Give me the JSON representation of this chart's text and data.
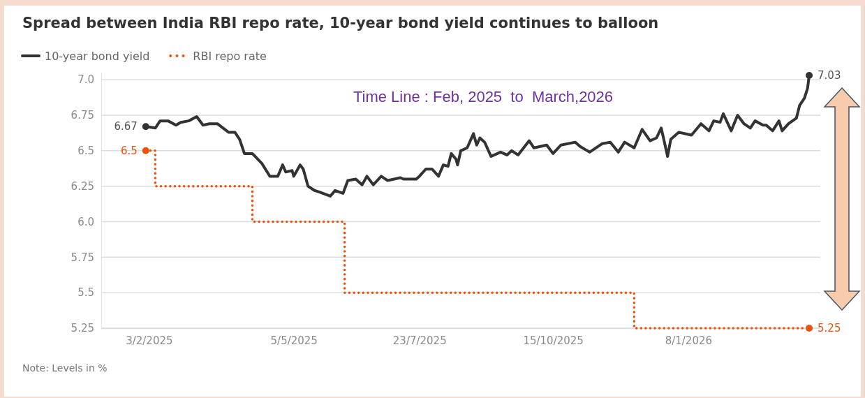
{
  "chart_data": {
    "type": "line",
    "title": "Spread between India RBI repo rate, 10-year bond yield continues to balloon",
    "legend": "top left",
    "grid": "y",
    "xlim": [
      "2025-01-04",
      "2026-04-01"
    ],
    "xticks": [
      {
        "value": "2025-02-03",
        "label": "3/2/2025"
      },
      {
        "value": "2025-05-05",
        "label": "5/5/2025"
      },
      {
        "value": "2025-07-23",
        "label": "23/7/2025"
      },
      {
        "value": "2025-10-15",
        "label": "15/10/2025"
      },
      {
        "value": "2026-01-08",
        "label": "8/1/2026"
      }
    ],
    "ylim": [
      5.25,
      7.05
    ],
    "yticks": [
      {
        "value": 7,
        "label": "7.0"
      },
      6.75,
      6.5,
      6.25,
      {
        "value": 6,
        "label": "6.0"
      },
      5.75,
      5.5,
      5.25
    ],
    "series": [
      {
        "name": "10-year bond yield",
        "line_style": "solid",
        "color": "#333333",
        "x": [
          "2025-02-01",
          "2025-02-07",
          "2025-02-10",
          "2025-02-15",
          "2025-02-20",
          "2025-02-23",
          "2025-02-28",
          "2025-03-05",
          "2025-03-09",
          "2025-03-13",
          "2025-03-18",
          "2025-03-25",
          "2025-03-29",
          "2025-04-01",
          "2025-04-04",
          "2025-04-09",
          "2025-04-15",
          "2025-04-20",
          "2025-04-25",
          "2025-04-28",
          "2025-04-30",
          "2025-05-04",
          "2025-05-05",
          "2025-05-09",
          "2025-05-11",
          "2025-05-14",
          "2025-05-18",
          "2025-05-21",
          "2025-05-28",
          "2025-05-31",
          "2025-06-05",
          "2025-06-08",
          "2025-06-13",
          "2025-06-17",
          "2025-06-20",
          "2025-06-24",
          "2025-06-29",
          "2025-07-03",
          "2025-07-11",
          "2025-07-13",
          "2025-07-21",
          "2025-07-23",
          "2025-07-27",
          "2025-07-31",
          "2025-08-04",
          "2025-08-07",
          "2025-08-10",
          "2025-08-12",
          "2025-08-15",
          "2025-08-16",
          "2025-08-18",
          "2025-08-22",
          "2025-08-26",
          "2025-08-28",
          "2025-08-30",
          "2025-09-02",
          "2025-09-06",
          "2025-09-12",
          "2025-09-16",
          "2025-09-19",
          "2025-09-23",
          "2025-09-30",
          "2025-10-03",
          "2025-10-11",
          "2025-10-15",
          "2025-10-20",
          "2025-10-29",
          "2025-11-01",
          "2025-11-07",
          "2025-11-15",
          "2025-11-20",
          "2025-11-25",
          "2025-11-29",
          "2025-12-05",
          "2025-12-10",
          "2025-12-15",
          "2025-12-19",
          "2025-12-22",
          "2025-12-26",
          "2025-12-28",
          "2026-01-02",
          "2026-01-06",
          "2026-01-10",
          "2026-01-16",
          "2026-01-21",
          "2026-01-24",
          "2026-01-28",
          "2026-01-30",
          "2026-02-04",
          "2026-02-08",
          "2026-02-12",
          "2026-02-16",
          "2026-02-19",
          "2026-02-24",
          "2026-02-26",
          "2026-03-02",
          "2026-03-06",
          "2026-03-08",
          "2026-03-12",
          "2026-03-17",
          "2026-03-19",
          "2026-03-22",
          "2026-03-24",
          "2026-03-25"
        ],
        "values": [
          6.67,
          6.66,
          6.71,
          6.71,
          6.68,
          6.7,
          6.71,
          6.74,
          6.68,
          6.69,
          6.69,
          6.63,
          6.63,
          6.58,
          6.48,
          6.48,
          6.41,
          6.32,
          6.32,
          6.4,
          6.35,
          6.36,
          6.32,
          6.4,
          6.37,
          6.25,
          6.22,
          6.21,
          6.18,
          6.22,
          6.2,
          6.29,
          6.3,
          6.26,
          6.32,
          6.26,
          6.32,
          6.29,
          6.31,
          6.3,
          6.3,
          6.32,
          6.37,
          6.37,
          6.32,
          6.4,
          6.39,
          6.48,
          6.44,
          6.4,
          6.5,
          6.52,
          6.62,
          6.54,
          6.59,
          6.56,
          6.46,
          6.49,
          6.47,
          6.5,
          6.47,
          6.57,
          6.52,
          6.54,
          6.48,
          6.54,
          6.56,
          6.53,
          6.49,
          6.55,
          6.56,
          6.49,
          6.56,
          6.52,
          6.65,
          6.57,
          6.59,
          6.66,
          6.46,
          6.58,
          6.63,
          6.62,
          6.61,
          6.69,
          6.64,
          6.71,
          6.7,
          6.76,
          6.64,
          6.75,
          6.69,
          6.66,
          6.71,
          6.68,
          6.68,
          6.64,
          6.71,
          6.64,
          6.69,
          6.73,
          6.82,
          6.87,
          6.94,
          7.03
        ]
      },
      {
        "name": "RBI repo rate",
        "type": "step",
        "line_style": "dotted",
        "color": "#e8530e",
        "x": [
          "2025-02-01",
          "2025-02-07",
          "2025-04-09",
          "2025-06-06",
          "2025-12-05",
          "2026-03-25"
        ],
        "values": [
          6.5,
          6.25,
          6.0,
          5.5,
          5.25,
          5.25
        ]
      }
    ],
    "annotations": [
      "Time Line : Feb, 2025  to  March,2026",
      {
        "text": "6.67",
        "x": "2025-02-01",
        "y": 6.67
      },
      {
        "text": "6.5",
        "x": "2025-02-01",
        "y": 6.5
      },
      {
        "text": "7.03",
        "x": "2026-03-25",
        "y": 7.03
      },
      {
        "text": "5.25",
        "x": "2026-03-25",
        "y": 5.25
      },
      "Note: Levels in %"
    ]
  }
}
